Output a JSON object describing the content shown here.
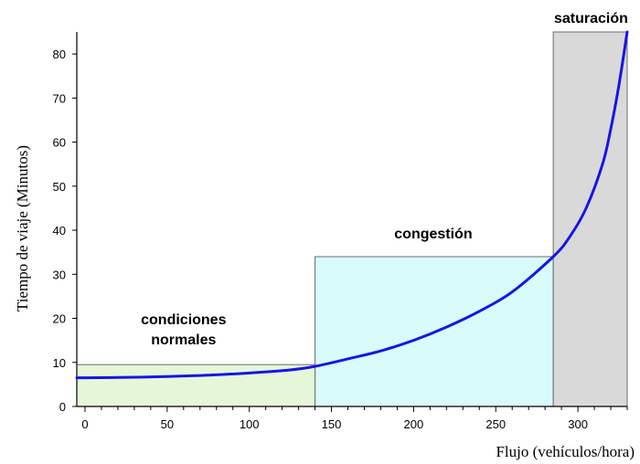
{
  "chart_data": {
    "type": "line",
    "xlabel": "Flujo (vehículos/hora)",
    "ylabel": "Tiempo de viaje (Minutos)",
    "xlim": [
      -5,
      330
    ],
    "ylim": [
      0,
      85
    ],
    "x_ticks": [
      "0",
      "50",
      "100",
      "150",
      "200",
      "250",
      "300"
    ],
    "x_tick_values": [
      0,
      50,
      100,
      150,
      200,
      250,
      300
    ],
    "y_ticks": [
      "0",
      "10",
      "20",
      "30",
      "40",
      "50",
      "60",
      "70",
      "80"
    ],
    "y_tick_values": [
      0,
      10,
      20,
      30,
      40,
      50,
      60,
      70,
      80
    ],
    "regions": [
      {
        "label_lines": [
          "condiciones",
          "normales"
        ],
        "x0": -5,
        "x1": 140,
        "y_top": 9.5,
        "fill": "#e6f7d9"
      },
      {
        "label_lines": [
          "congestión"
        ],
        "x0": 140,
        "x1": 285,
        "y_top": 34,
        "fill": "#d8fbfb"
      },
      {
        "label_lines": [
          "saturación"
        ],
        "x0": 285,
        "x1": 330,
        "y_top": 85,
        "fill": "#d9d9d9"
      }
    ],
    "series": [
      {
        "color": "#1515e6",
        "x": [
          -5,
          0,
          25,
          50,
          75,
          100,
          125,
          140,
          160,
          180,
          200,
          220,
          240,
          260,
          285,
          295,
          305,
          315,
          320,
          325,
          330
        ],
        "y": [
          6.5,
          6.5,
          6.6,
          6.8,
          7.1,
          7.6,
          8.3,
          9.1,
          10.8,
          12.6,
          15.0,
          18.0,
          21.6,
          26.0,
          34.0,
          38.5,
          45,
          55,
          63,
          73,
          85
        ]
      }
    ]
  }
}
